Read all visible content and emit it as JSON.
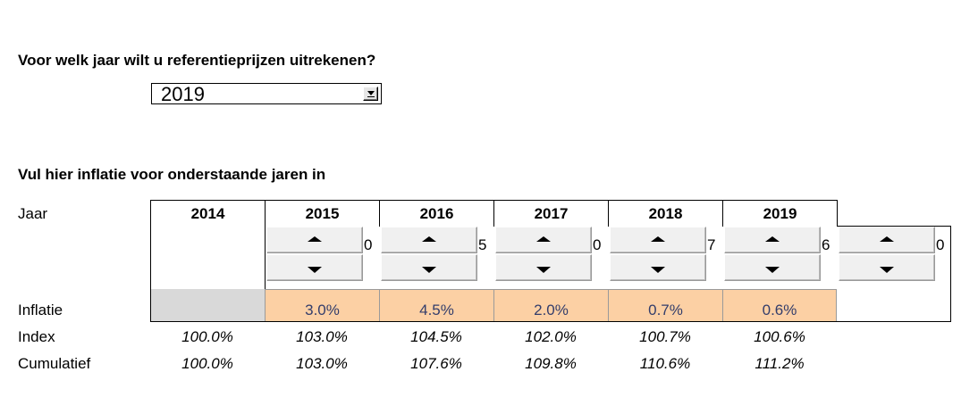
{
  "question": "Voor welk jaar wilt u referentieprijzen uitrekenen?",
  "year_select": {
    "value": "2019"
  },
  "inflation_heading": "Vul hier inflatie voor onderstaande jaren in",
  "row_labels": {
    "jaar": "Jaar",
    "inflatie": "Inflatie",
    "index": "Index",
    "cumulatief": "Cumulatief"
  },
  "years": [
    "2014",
    "2015",
    "2016",
    "2017",
    "2018",
    "2019"
  ],
  "spinner_values": [
    "0",
    "5",
    "0",
    "7",
    "6",
    "0"
  ],
  "inflatie": [
    "",
    "3.0%",
    "4.5%",
    "2.0%",
    "0.7%",
    "0.6%"
  ],
  "index": [
    "100.0%",
    "103.0%",
    "104.5%",
    "102.0%",
    "100.7%",
    "100.6%"
  ],
  "cumulatief": [
    "100.0%",
    "103.0%",
    "107.6%",
    "109.8%",
    "110.6%",
    "111.2%"
  ],
  "colors": {
    "input_fill": "#fcd0a4",
    "base_fill": "#d9d9d9",
    "input_text": "#333d6b"
  }
}
